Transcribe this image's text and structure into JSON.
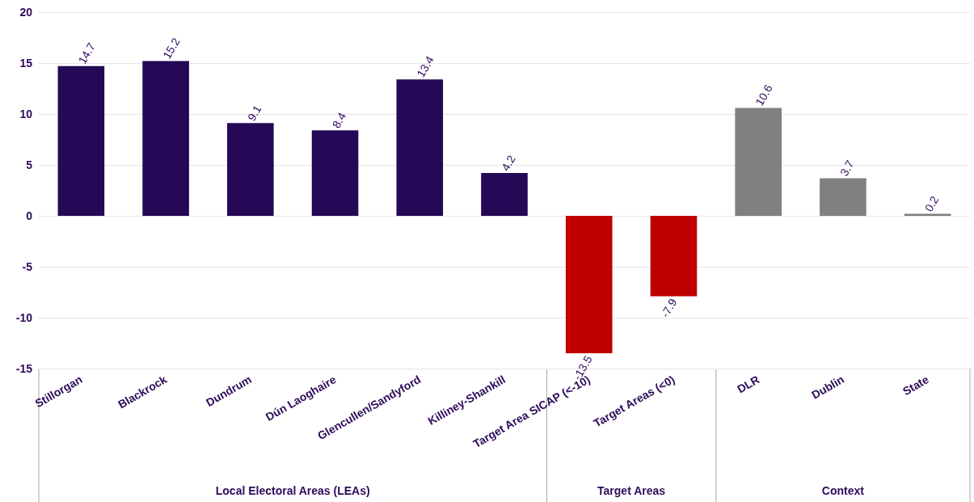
{
  "chart_data": {
    "type": "bar",
    "categories": [
      "Stillorgan",
      "Blackrock",
      "Dundrum",
      "Dún Laoghaire",
      "Glencullen/Sandyford",
      "Killiney-Shankill",
      "Target Area SICAP (<-10)",
      "Target Areas (<0)",
      "DLR",
      "Dublin",
      "State"
    ],
    "values": [
      14.7,
      15.2,
      9.1,
      8.4,
      13.4,
      4.2,
      -13.5,
      -7.9,
      10.6,
      3.7,
      0.2
    ],
    "colors": [
      "#250856",
      "#250856",
      "#250856",
      "#250856",
      "#250856",
      "#250856",
      "#c00000",
      "#c00000",
      "#808080",
      "#808080",
      "#808080"
    ],
    "ylim": [
      -15,
      20
    ],
    "yticks": [
      -15,
      -10,
      -5,
      0,
      5,
      10,
      15,
      20
    ],
    "grid": "y",
    "data_labels": true,
    "annotations": [
      "Local Electoral Areas (LEAs)",
      "Target Areas",
      "Context"
    ]
  }
}
